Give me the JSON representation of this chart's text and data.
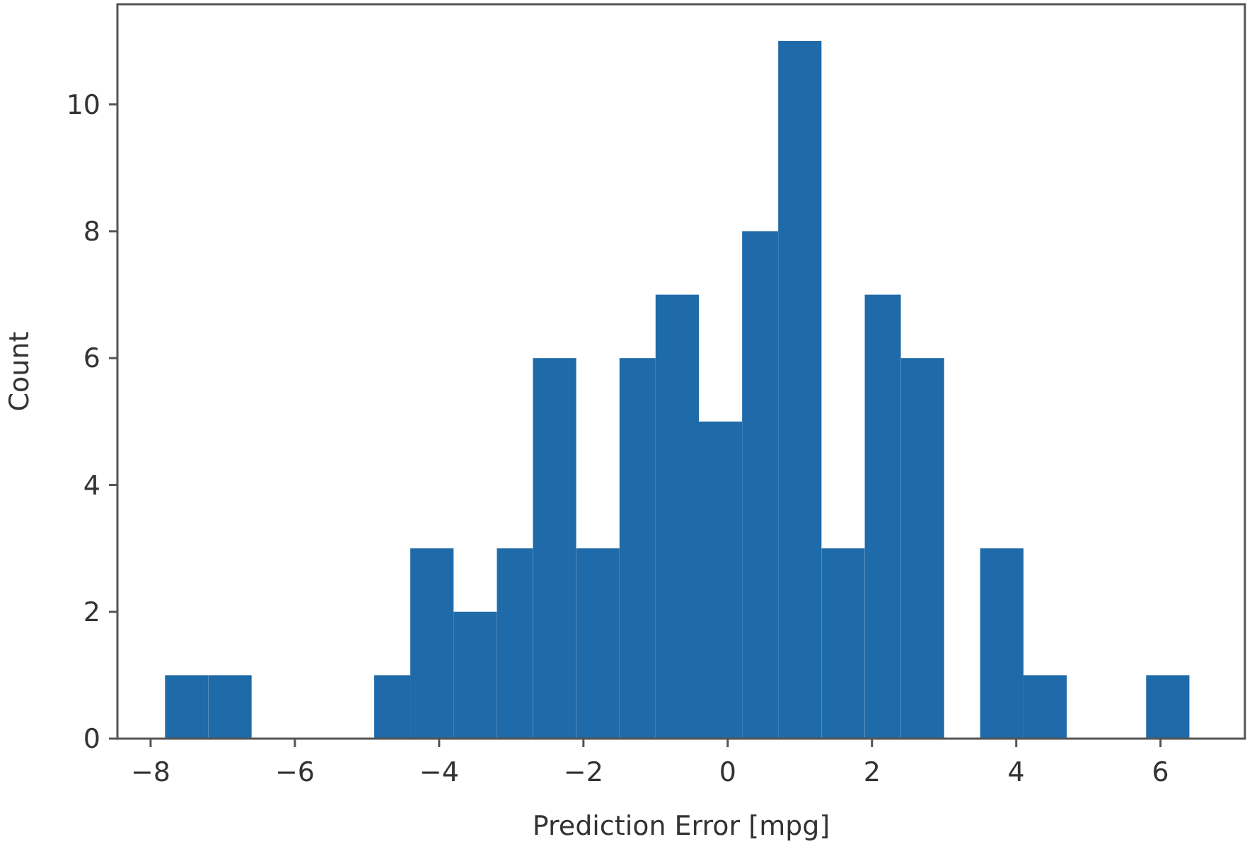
{
  "chart_data": {
    "type": "histogram",
    "xlabel": "Prediction Error [mpg]",
    "ylabel": "Count",
    "bins": [
      -7.8,
      -7.2,
      -6.6,
      -4.9,
      -4.4,
      -3.8,
      -3.2,
      -2.7,
      -2.1,
      -1.5,
      -1.0,
      -0.4,
      0.2,
      0.7,
      1.3,
      1.9,
      2.4,
      3.0,
      3.5,
      4.1,
      4.7,
      5.8,
      6.4
    ],
    "values": [
      1,
      1,
      0,
      1,
      3,
      2,
      3,
      6,
      3,
      6,
      7,
      5,
      8,
      11,
      3,
      7,
      6,
      0,
      3,
      1,
      0,
      1
    ],
    "color": "#1f6aa8",
    "xlim": [
      -8.46,
      7.17
    ],
    "ylim": [
      0,
      11.58
    ],
    "xticks": [
      {
        "value": -8,
        "label": "−8"
      },
      {
        "value": -6,
        "label": "−6"
      },
      {
        "value": -4,
        "label": "−4"
      },
      {
        "value": -2,
        "label": "−2"
      },
      0,
      2,
      4,
      6
    ],
    "yticks": [
      0,
      2,
      4,
      6,
      8,
      10
    ],
    "grid": false
  }
}
